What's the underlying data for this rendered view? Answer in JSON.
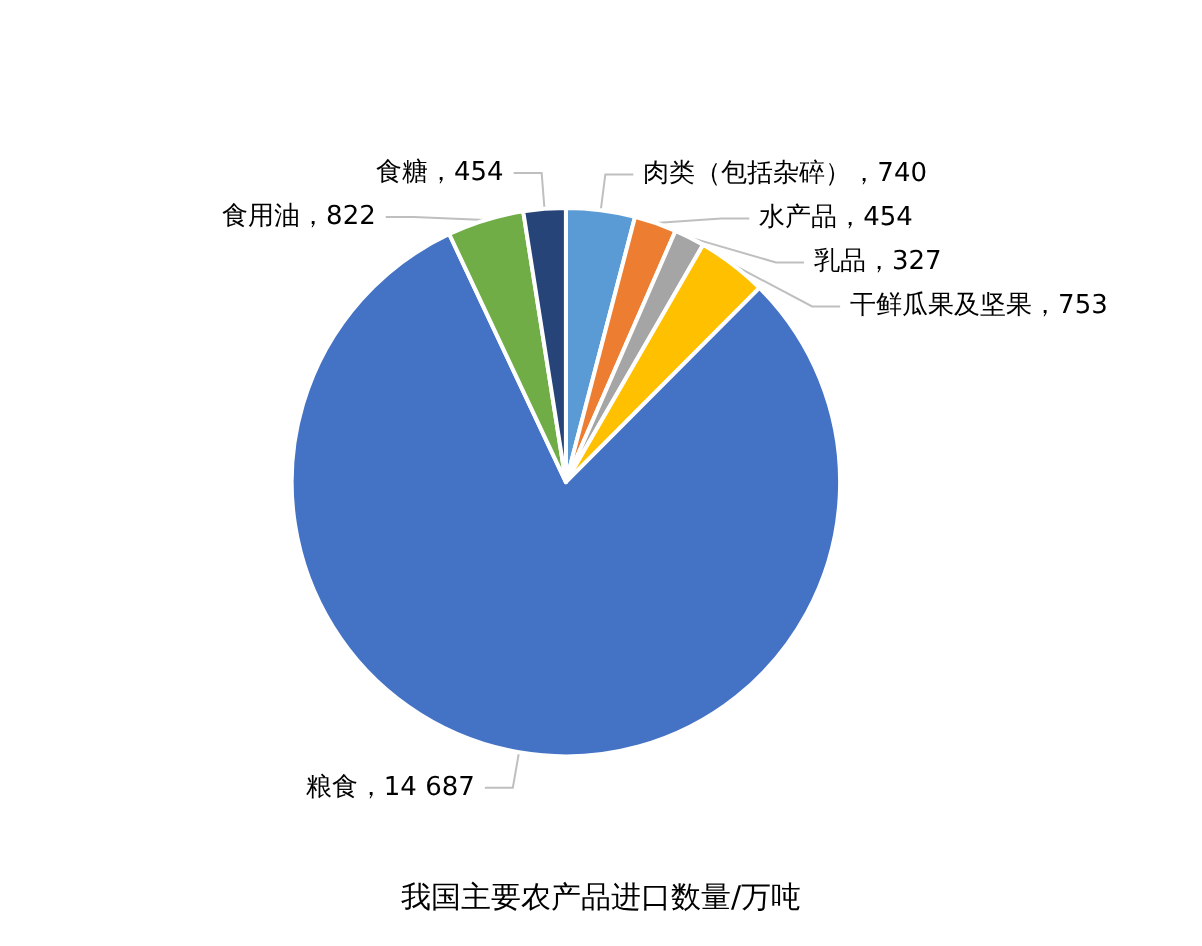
{
  "chart_data": {
    "type": "pie",
    "title": "我国主要农产品进口数量/万吨",
    "categories": [
      "肉类（包括杂碎）",
      "水产品",
      "乳品",
      "干鲜瓜果及坚果",
      "粮食",
      "食用油",
      "食糖"
    ],
    "values": [
      740,
      454,
      327,
      753,
      14687,
      822,
      454
    ],
    "value_labels": [
      "740",
      "454",
      "327",
      "753",
      "14 687",
      "822",
      "454"
    ],
    "colors": [
      "#5b9bd5",
      "#ed7d31",
      "#a5a5a5",
      "#ffc000",
      "#4472c4",
      "#70ad47",
      "#264478"
    ]
  }
}
